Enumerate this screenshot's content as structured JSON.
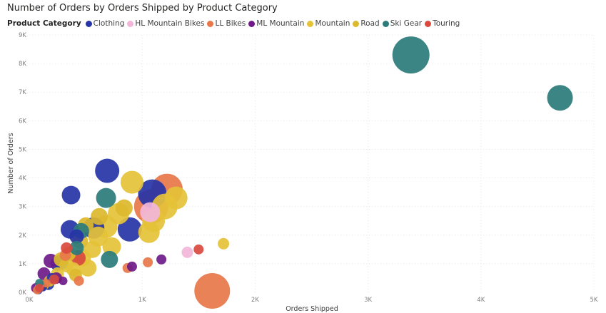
{
  "chart_data": {
    "type": "scatter",
    "title": "Number of Orders by Orders Shipped by Product Category",
    "xlabel": "Orders Shipped",
    "ylabel": "Number of Orders",
    "xlim": [
      0,
      5000
    ],
    "ylim": [
      0,
      9000
    ],
    "x_ticks": [
      "0K",
      "1K",
      "2K",
      "3K",
      "4K",
      "5K"
    ],
    "y_ticks": [
      "0K",
      "1K",
      "2K",
      "3K",
      "4K",
      "5K",
      "6K",
      "7K",
      "8K",
      "9K"
    ],
    "grid": true,
    "legend_title": "Product Category",
    "legend_position": "top-left",
    "series": [
      {
        "name": "Clothing",
        "color": "#2634a6",
        "points": [
          {
            "x": 690,
            "y": 4250,
            "r": 17
          },
          {
            "x": 370,
            "y": 3400,
            "r": 13
          },
          {
            "x": 1090,
            "y": 3450,
            "r": 20
          },
          {
            "x": 360,
            "y": 2200,
            "r": 13
          },
          {
            "x": 570,
            "y": 2250,
            "r": 15
          },
          {
            "x": 890,
            "y": 2200,
            "r": 17
          },
          {
            "x": 420,
            "y": 1950,
            "r": 10
          },
          {
            "x": 250,
            "y": 1000,
            "r": 10
          },
          {
            "x": 170,
            "y": 280,
            "r": 8
          },
          {
            "x": 80,
            "y": 80,
            "r": 6
          },
          {
            "x": 200,
            "y": 500,
            "r": 7
          },
          {
            "x": 120,
            "y": 180,
            "r": 6
          }
        ]
      },
      {
        "name": "HL Mountain Bikes",
        "color": "#f2b6da",
        "points": [
          {
            "x": 1070,
            "y": 2800,
            "r": 14
          },
          {
            "x": 1400,
            "y": 1400,
            "r": 8
          },
          {
            "x": 90,
            "y": 200,
            "r": 6
          }
        ]
      },
      {
        "name": "LL Bikes",
        "color": "#e8774a",
        "points": [
          {
            "x": 1220,
            "y": 3600,
            "r": 22
          },
          {
            "x": 1080,
            "y": 3000,
            "r": 24
          },
          {
            "x": 1620,
            "y": 50,
            "r": 25
          },
          {
            "x": 870,
            "y": 850,
            "r": 7
          },
          {
            "x": 1050,
            "y": 1050,
            "r": 7
          },
          {
            "x": 440,
            "y": 400,
            "r": 7
          },
          {
            "x": 320,
            "y": 1300,
            "r": 8
          },
          {
            "x": 70,
            "y": 80,
            "r": 6
          },
          {
            "x": 150,
            "y": 320,
            "r": 6
          }
        ]
      },
      {
        "name": "ML Mountain",
        "color": "#6e1a88",
        "points": [
          {
            "x": 190,
            "y": 1100,
            "r": 10
          },
          {
            "x": 130,
            "y": 650,
            "r": 9
          },
          {
            "x": 910,
            "y": 900,
            "r": 7
          },
          {
            "x": 1170,
            "y": 1150,
            "r": 7
          },
          {
            "x": 240,
            "y": 500,
            "r": 8
          },
          {
            "x": 60,
            "y": 150,
            "r": 7
          },
          {
            "x": 300,
            "y": 400,
            "r": 6
          }
        ]
      },
      {
        "name": "Mountain",
        "color": "#e5c238",
        "points": [
          {
            "x": 910,
            "y": 3850,
            "r": 16
          },
          {
            "x": 1300,
            "y": 3300,
            "r": 16
          },
          {
            "x": 1200,
            "y": 3000,
            "r": 18
          },
          {
            "x": 1100,
            "y": 2500,
            "r": 16
          },
          {
            "x": 1060,
            "y": 2100,
            "r": 15
          },
          {
            "x": 790,
            "y": 2750,
            "r": 15
          },
          {
            "x": 680,
            "y": 2300,
            "r": 16
          },
          {
            "x": 610,
            "y": 1950,
            "r": 14
          },
          {
            "x": 730,
            "y": 1600,
            "r": 13
          },
          {
            "x": 560,
            "y": 1500,
            "r": 12
          },
          {
            "x": 470,
            "y": 1200,
            "r": 12
          },
          {
            "x": 520,
            "y": 850,
            "r": 12
          },
          {
            "x": 390,
            "y": 800,
            "r": 10
          },
          {
            "x": 330,
            "y": 950,
            "r": 10
          },
          {
            "x": 250,
            "y": 650,
            "r": 9
          },
          {
            "x": 1720,
            "y": 1700,
            "r": 8
          }
        ]
      },
      {
        "name": "Road",
        "color": "#dcb92e",
        "points": [
          {
            "x": 620,
            "y": 2650,
            "r": 12
          },
          {
            "x": 840,
            "y": 2950,
            "r": 12
          },
          {
            "x": 500,
            "y": 2350,
            "r": 11
          },
          {
            "x": 450,
            "y": 1800,
            "r": 11
          },
          {
            "x": 350,
            "y": 1350,
            "r": 10
          },
          {
            "x": 280,
            "y": 1150,
            "r": 10
          },
          {
            "x": 410,
            "y": 600,
            "r": 9
          },
          {
            "x": 180,
            "y": 400,
            "r": 8
          },
          {
            "x": 130,
            "y": 250,
            "r": 7
          }
        ]
      },
      {
        "name": "Ski Gear",
        "color": "#2b7b7b",
        "points": [
          {
            "x": 3380,
            "y": 8300,
            "r": 26
          },
          {
            "x": 4700,
            "y": 6800,
            "r": 18
          },
          {
            "x": 680,
            "y": 3300,
            "r": 14
          },
          {
            "x": 460,
            "y": 2150,
            "r": 11
          },
          {
            "x": 710,
            "y": 1150,
            "r": 12
          },
          {
            "x": 280,
            "y": 1050,
            "r": 11
          },
          {
            "x": 420,
            "y": 1550,
            "r": 10
          },
          {
            "x": 90,
            "y": 320,
            "r": 6
          }
        ]
      },
      {
        "name": "Touring",
        "color": "#d9493e",
        "points": [
          {
            "x": 1500,
            "y": 1500,
            "r": 7
          },
          {
            "x": 430,
            "y": 1200,
            "r": 11
          },
          {
            "x": 330,
            "y": 1550,
            "r": 8
          },
          {
            "x": 220,
            "y": 450,
            "r": 7
          },
          {
            "x": 90,
            "y": 150,
            "r": 6
          }
        ]
      }
    ]
  }
}
